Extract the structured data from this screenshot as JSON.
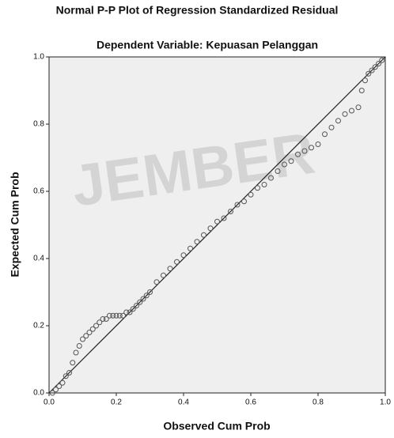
{
  "chart_data": {
    "type": "scatter",
    "title": "Normal P-P Plot of Regression Standardized Residual",
    "subtitle": "Dependent Variable: Kepuasan Pelanggan",
    "x_label": "Observed Cum Prob",
    "y_label": "Expected Cum Prob",
    "watermark": "JEMBER",
    "xlim": [
      0,
      1
    ],
    "ylim": [
      0,
      1
    ],
    "xticks": [
      {
        "value": 0,
        "label": "0.0"
      },
      {
        "value": 0.2,
        "label": "0.2"
      },
      {
        "value": 0.4,
        "label": "0.4"
      },
      {
        "value": 0.6,
        "label": "0.6"
      },
      {
        "value": 0.8,
        "label": "0.8"
      },
      {
        "value": 1,
        "label": "1.0"
      }
    ],
    "yticks": [
      {
        "value": 0,
        "label": "0.0"
      },
      {
        "value": 0.2,
        "label": "0.2"
      },
      {
        "value": 0.4,
        "label": "0.4"
      },
      {
        "value": 0.6,
        "label": "0.6"
      },
      {
        "value": 0.8,
        "label": "0.8"
      },
      {
        "value": 1,
        "label": "1.0"
      }
    ],
    "series": [
      {
        "color": "#555555",
        "x": [
          0.01,
          0.02,
          0.03,
          0.04,
          0.05,
          0.06,
          0.07,
          0.08,
          0.09,
          0.1,
          0.11,
          0.12,
          0.13,
          0.14,
          0.15,
          0.16,
          0.17,
          0.18,
          0.19,
          0.2,
          0.21,
          0.22,
          0.23,
          0.24,
          0.25,
          0.26,
          0.27,
          0.28,
          0.29,
          0.3,
          0.32,
          0.34,
          0.36,
          0.38,
          0.4,
          0.42,
          0.44,
          0.46,
          0.48,
          0.5,
          0.52,
          0.54,
          0.56,
          0.58,
          0.6,
          0.62,
          0.64,
          0.66,
          0.68,
          0.7,
          0.72,
          0.74,
          0.76,
          0.78,
          0.8,
          0.82,
          0.84,
          0.86,
          0.88,
          0.9,
          0.92,
          0.93,
          0.94,
          0.95,
          0.96,
          0.97,
          0.98,
          0.99
        ],
        "values": [
          0.0,
          0.01,
          0.02,
          0.03,
          0.05,
          0.06,
          0.09,
          0.12,
          0.14,
          0.16,
          0.17,
          0.18,
          0.19,
          0.2,
          0.21,
          0.22,
          0.22,
          0.23,
          0.23,
          0.23,
          0.23,
          0.23,
          0.24,
          0.24,
          0.25,
          0.26,
          0.27,
          0.28,
          0.29,
          0.3,
          0.33,
          0.35,
          0.37,
          0.39,
          0.41,
          0.43,
          0.45,
          0.47,
          0.49,
          0.51,
          0.52,
          0.54,
          0.56,
          0.57,
          0.59,
          0.61,
          0.62,
          0.64,
          0.66,
          0.68,
          0.69,
          0.71,
          0.72,
          0.73,
          0.74,
          0.77,
          0.79,
          0.81,
          0.83,
          0.84,
          0.85,
          0.9,
          0.93,
          0.95,
          0.96,
          0.97,
          0.98,
          0.99
        ]
      }
    ]
  }
}
